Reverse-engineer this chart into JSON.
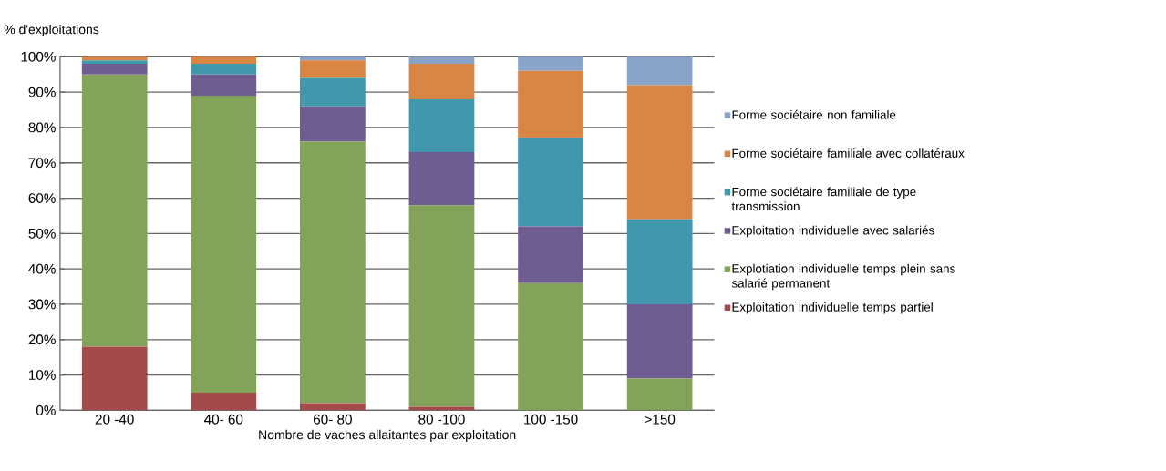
{
  "chart_data": {
    "type": "bar",
    "stacked": true,
    "ylabel": "% d'exploitations",
    "xlabel": "Nombre de vaches allaitantes par exploitation",
    "categories": [
      "20 -40",
      "40- 60",
      "60- 80",
      "80 -100",
      "100 -150",
      ">150"
    ],
    "series": [
      {
        "name": "Exploitation individuelle temps partiel",
        "color": "#a34b4b",
        "values": [
          18,
          5,
          2,
          1,
          0,
          0
        ]
      },
      {
        "name": "Explotiation individuelle temps plein sans salarié permanent",
        "color": "#83a458",
        "values": [
          77,
          84,
          74,
          57,
          36,
          9
        ]
      },
      {
        "name": "Exploitation individuelle avec salariés",
        "color": "#6f5c91",
        "values": [
          3,
          6,
          10,
          15,
          16,
          21
        ]
      },
      {
        "name": "Forme sociétaire familiale de type transmission",
        "color": "#4198ac",
        "values": [
          1,
          3,
          8,
          15,
          25,
          24
        ]
      },
      {
        "name": "Forme sociétaire familiale avec collatéraux",
        "color": "#d98645",
        "values": [
          1,
          2,
          5,
          10,
          19,
          38
        ]
      },
      {
        "name": "Forme sociétaire non familiale",
        "color": "#89a4c8",
        "values": [
          0,
          0,
          1,
          2,
          4,
          8
        ]
      }
    ],
    "ylim": [
      0,
      100
    ],
    "yticks": [
      {
        "value": 0,
        "label": "0%"
      },
      {
        "value": 10,
        "label": "10%"
      },
      {
        "value": 20,
        "label": "20%"
      },
      {
        "value": 30,
        "label": "30%"
      },
      {
        "value": 40,
        "label": "40%"
      },
      {
        "value": 50,
        "label": "50%"
      },
      {
        "value": 60,
        "label": "60%"
      },
      {
        "value": 70,
        "label": "70%"
      },
      {
        "value": 80,
        "label": "80%"
      },
      {
        "value": 90,
        "label": "90%"
      },
      {
        "value": 100,
        "label": "100%"
      }
    ],
    "grid": "y",
    "legend": "right"
  }
}
